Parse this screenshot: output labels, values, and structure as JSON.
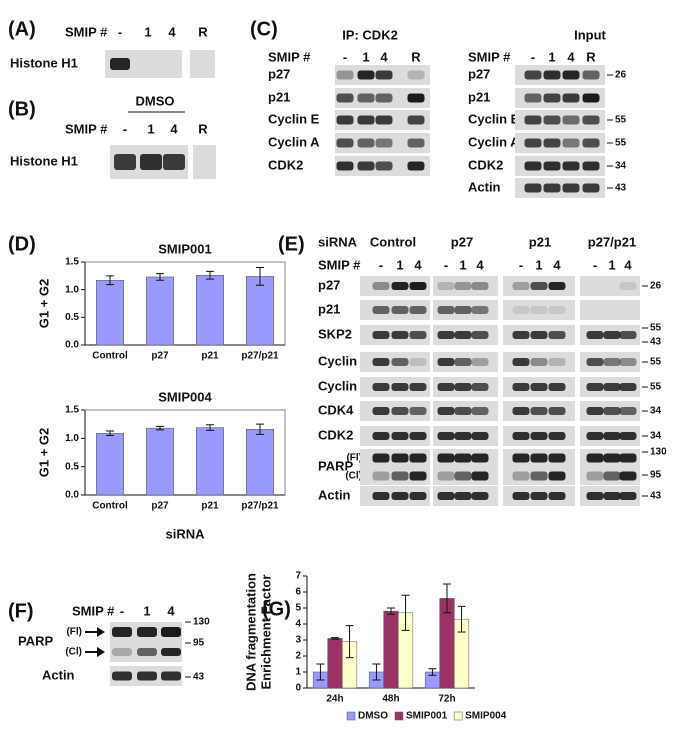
{
  "figure": {
    "panel_a": {
      "label": "(A)",
      "smip_label": "SMIP #",
      "lanes": [
        "-",
        "1",
        "4",
        "R"
      ],
      "rows": [
        {
          "name": "Histone H1"
        }
      ]
    },
    "panel_b": {
      "label": "(B)",
      "treatment": "DMSO",
      "smip_label": "SMIP #",
      "lanes": [
        "-",
        "1",
        "4",
        "R"
      ],
      "rows": [
        {
          "name": "Histone H1"
        }
      ]
    },
    "panel_c": {
      "label": "(C)",
      "ip": {
        "title": "IP: CDK2",
        "smip_label": "SMIP #",
        "lanes": [
          "-",
          "1",
          "4",
          "R"
        ],
        "rows": [
          {
            "name": "p27"
          },
          {
            "name": "p21"
          },
          {
            "name": "Cyclin E"
          },
          {
            "name": "Cyclin A"
          },
          {
            "name": "CDK2"
          }
        ]
      },
      "input": {
        "title": "Input",
        "smip_label": "SMIP #",
        "lanes": [
          "-",
          "1",
          "4",
          "R"
        ],
        "rows": [
          {
            "name": "p27",
            "markers": [
              "26"
            ]
          },
          {
            "name": "p21"
          },
          {
            "name": "Cyclin E",
            "markers": [
              "55"
            ]
          },
          {
            "name": "Cyclin A",
            "markers": [
              "55"
            ]
          },
          {
            "name": "CDK2",
            "markers": [
              "34"
            ]
          },
          {
            "name": "Actin",
            "markers": [
              "43"
            ]
          }
        ]
      }
    },
    "panel_d": {
      "label": "(D)"
    },
    "panel_e": {
      "label": "(E)",
      "sirna_label": "siRNA",
      "groups": [
        "Control",
        "p27",
        "p21",
        "p27/p21"
      ],
      "smip_label": "SMIP #",
      "lanes": [
        "-",
        "1",
        "4"
      ],
      "rows": [
        {
          "name": "p27",
          "markers": [
            "26"
          ]
        },
        {
          "name": "p21"
        },
        {
          "name": "SKP2",
          "markers": [
            "55",
            "43"
          ]
        },
        {
          "name": "Cyclin A",
          "markers": [
            "55"
          ]
        },
        {
          "name": "Cyclin E",
          "markers": [
            "55"
          ]
        },
        {
          "name": "CDK4",
          "markers": [
            "34"
          ]
        },
        {
          "name": "CDK2",
          "markers": [
            "34"
          ]
        },
        {
          "name": "PARP",
          "forms": [
            "(Fl)",
            "(Cl)"
          ],
          "markers": [
            "130",
            "95"
          ]
        },
        {
          "name": "Actin",
          "markers": [
            "43"
          ]
        }
      ]
    },
    "panel_f": {
      "label": "(F)",
      "smip_label": "SMIP #",
      "lanes": [
        "-",
        "1",
        "4"
      ],
      "rows": [
        {
          "name": "PARP",
          "forms": [
            "(Fl)",
            "(Cl)"
          ],
          "markers": [
            "130",
            "95"
          ]
        },
        {
          "name": "Actin",
          "markers": [
            "43"
          ]
        }
      ]
    },
    "panel_g": {
      "label": "(G)"
    }
  },
  "chart_data": [
    {
      "type": "bar",
      "title": "SMIP001",
      "y_label": [
        "G1 + G2"
      ],
      "frame": true,
      "categories": [
        "Control",
        "p27",
        "p21",
        "p27/p21"
      ],
      "series": [
        {
          "color": "#9999ff",
          "values": [
            1.17,
            1.23,
            1.26,
            1.24
          ],
          "errors": [
            0.08,
            0.06,
            0.07,
            0.16
          ]
        }
      ],
      "ylim": [
        0,
        1.5
      ],
      "yticks": [
        {
          "value": 0,
          "label": "0.0"
        },
        0.5,
        {
          "value": 1,
          "label": "1.0"
        },
        1.5
      ]
    },
    {
      "type": "bar",
      "title": "SMIP004",
      "y_label": [
        "G1 + G2"
      ],
      "x_label": "siRNA",
      "frame": true,
      "categories": [
        "Control",
        "p27",
        "p21",
        "p27/p21"
      ],
      "series": [
        {
          "color": "#9999ff",
          "values": [
            1.09,
            1.18,
            1.19,
            1.16
          ],
          "errors": [
            0.04,
            0.03,
            0.05,
            0.09
          ]
        }
      ],
      "ylim": [
        0,
        1.5
      ],
      "yticks": [
        {
          "value": 0,
          "label": "0.0"
        },
        0.5,
        {
          "value": 1,
          "label": "1.0"
        },
        1.5
      ]
    },
    {
      "type": "bar",
      "y_label": [
        "DNA fragmentation",
        "Enrichment Factor"
      ],
      "frame": false,
      "categories": [
        "24h",
        "48h",
        "72h"
      ],
      "series": [
        {
          "name": "DMSO",
          "color": "#9999ff",
          "values": [
            1,
            1,
            1
          ],
          "errors": [
            0.5,
            0.5,
            0.2
          ]
        },
        {
          "name": "SMIP001",
          "color": "#993366",
          "values": [
            3.1,
            4.8,
            5.6
          ],
          "errors": [
            0.05,
            0.2,
            0.9
          ]
        },
        {
          "name": "SMIP004",
          "color": "#ffffcc",
          "values": [
            2.9,
            4.7,
            4.3
          ],
          "errors": [
            1.0,
            1.1,
            0.8
          ]
        }
      ],
      "ylim": [
        0,
        7
      ],
      "yticks": [
        0,
        1,
        2,
        3,
        4,
        5,
        6,
        7
      ]
    }
  ]
}
